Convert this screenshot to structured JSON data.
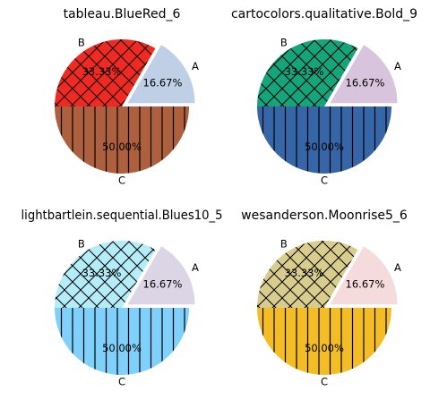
{
  "chart_data": [
    {
      "type": "pie",
      "title": "tableau.BlueRed_6",
      "categories": [
        "A",
        "B",
        "C"
      ],
      "values": [
        16.67,
        33.33,
        50.0
      ],
      "value_labels": [
        "16.67%",
        "33.33%",
        "50.00%"
      ],
      "colors": [
        "#bfcfe6",
        "#f02a22",
        "#ad5f3e"
      ],
      "explode": [
        0.1,
        0,
        0
      ],
      "hatches": [
        "none",
        "cross-hatch",
        "vertical-lines"
      ]
    },
    {
      "type": "pie",
      "title": "cartocolors.qualitative.Bold_9",
      "categories": [
        "A",
        "B",
        "C"
      ],
      "values": [
        16.67,
        33.33,
        50.0
      ],
      "value_labels": [
        "16.67%",
        "33.33%",
        "50.00%"
      ],
      "colors": [
        "#d9c4de",
        "#14a57a",
        "#3766a8"
      ],
      "explode": [
        0.1,
        0,
        0
      ],
      "hatches": [
        "none",
        "cross-hatch",
        "vertical-lines"
      ]
    },
    {
      "type": "pie",
      "title": "lightbartlein.sequential.Blues10_5",
      "categories": [
        "A",
        "B",
        "C"
      ],
      "values": [
        16.67,
        33.33,
        50.0
      ],
      "value_labels": [
        "16.67%",
        "33.33%",
        "50.00%"
      ],
      "colors": [
        "#dcd5e6",
        "#b4ecf7",
        "#7fd1fc"
      ],
      "explode": [
        0.1,
        0,
        0
      ],
      "hatches": [
        "none",
        "cross-hatch",
        "vertical-lines"
      ]
    },
    {
      "type": "pie",
      "title": "wesanderson.Moonrise5_6",
      "categories": [
        "A",
        "B",
        "C"
      ],
      "values": [
        16.67,
        33.33,
        50.0
      ],
      "value_labels": [
        "16.67%",
        "33.33%",
        "50.00%"
      ],
      "colors": [
        "#f5dbdb",
        "#d8cd8c",
        "#f4bd26"
      ],
      "explode": [
        0.1,
        0,
        0
      ],
      "hatches": [
        "none",
        "cross-hatch",
        "vertical-lines"
      ]
    }
  ]
}
